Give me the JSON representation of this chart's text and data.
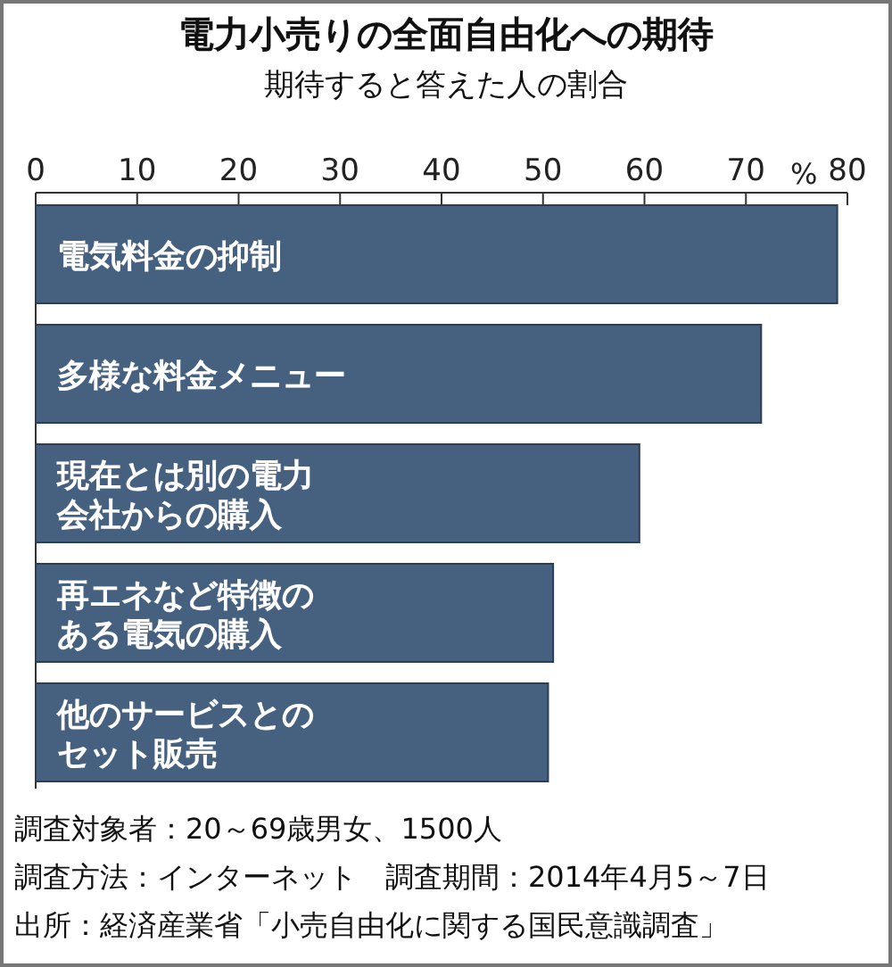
{
  "chart_data": {
    "type": "bar",
    "orientation": "horizontal",
    "title": "電力小売りの全面自由化への期待",
    "subtitle": "期待すると答えた人の割合",
    "xlabel": "%",
    "categories": [
      "電気料金の抑制",
      "多様な料金メニュー",
      "現在とは別の電力会社からの購入",
      "再エネなど特徴のある電気の購入",
      "他のサービスとのセット販売"
    ],
    "values": [
      79,
      71.5,
      59.5,
      51,
      50.5
    ],
    "color": "#46607f",
    "xlim": [
      0,
      80
    ],
    "xticks": [
      0,
      10,
      20,
      30,
      40,
      50,
      60,
      70,
      80
    ],
    "grid": false,
    "annotations": [
      "調査対象者：20～69歳男女、1500人",
      "調査方法：インターネット　調査期間：2014年4月5～7日",
      "出所：経済産業省「小売自由化に関する国民意識調査」"
    ]
  }
}
